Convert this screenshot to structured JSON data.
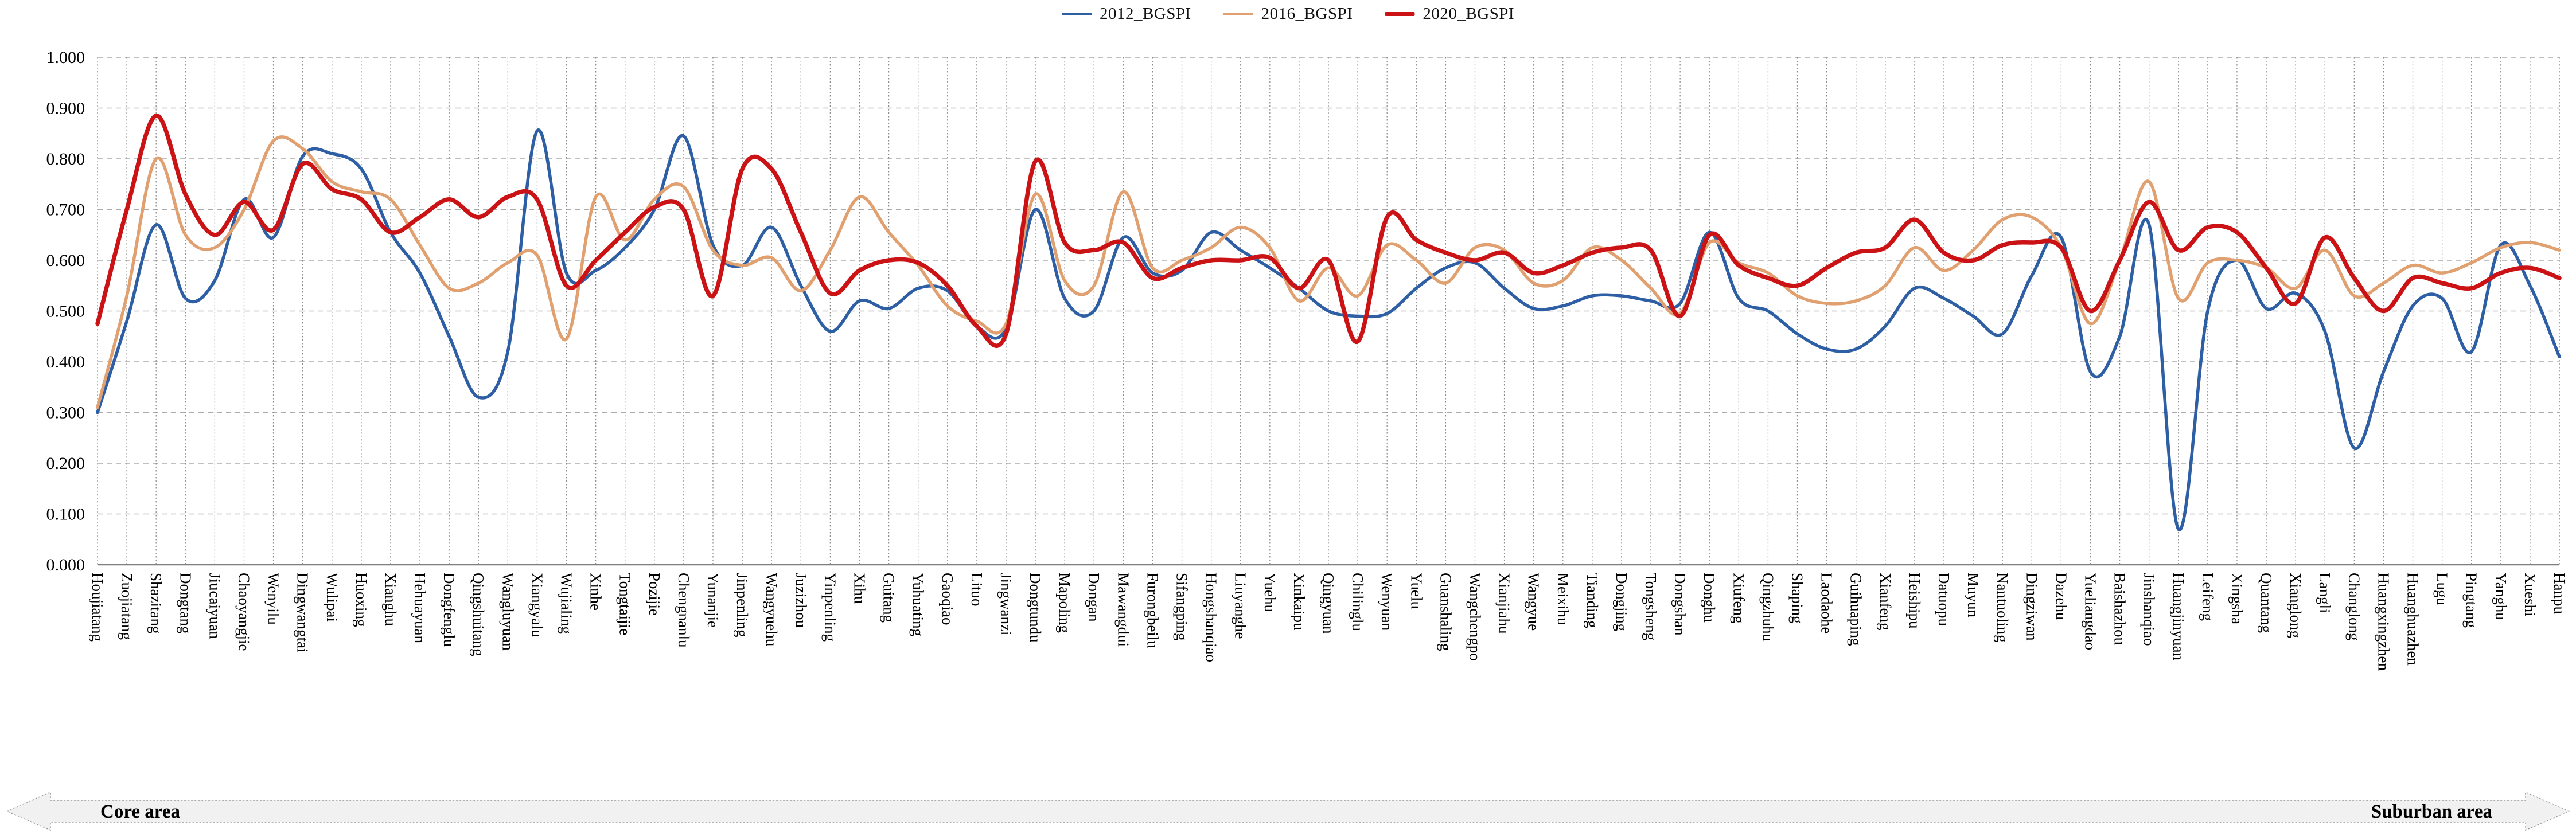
{
  "legend_title": "",
  "footer": {
    "left_label": "Core area",
    "right_label": "Suburban area"
  },
  "chart_data": {
    "type": "line",
    "title": "",
    "xlabel": "",
    "ylabel": "",
    "ylim": [
      0.0,
      1.0
    ],
    "ytick_step": 0.1,
    "ytick_decimals": 3,
    "grid": "both",
    "legend_position": "top-center",
    "line_style": "smooth",
    "categories": [
      "Houjiatang",
      "Zuojiatang",
      "Shazitang",
      "Dongtang",
      "Jiucaiyuan",
      "Chaoyangjie",
      "Wenyilu",
      "Dingwangtai",
      "Wulipai",
      "Huoxing",
      "Xianghu",
      "Hehuayuan",
      "Dongfenglu",
      "Qingshuitang",
      "Wangluyuan",
      "Xiangyalu",
      "Wujialing",
      "Xinhe",
      "Tongtaijie",
      "Pozijie",
      "Chengnanlu",
      "Yunanjie",
      "Jinpenling",
      "Wangyuehu",
      "Juzizhou",
      "Yinpenling",
      "Xihu",
      "Guitang",
      "Yuhuating",
      "Gaoqiao",
      "Lituo",
      "Jingwanzi",
      "Dongtundu",
      "Mapoling",
      "Dongan",
      "Mawangdui",
      "Furongbeilu",
      "Sifangping",
      "Hongshanqiao",
      "Liuyanghe",
      "Yuehu",
      "Xinkaipu",
      "Qingyuan",
      "Chilinglu",
      "Wenyuan",
      "Yuelu",
      "Guanshaling",
      "Wangchengpo",
      "Xianjiahu",
      "Wangyue",
      "Meixihu",
      "Tianding",
      "Dongjing",
      "Tongsheng",
      "Dongshan",
      "Donghu",
      "Xiufeng",
      "Qingzhuhu",
      "Shaping",
      "Laodaohe",
      "Guihuaping",
      "Xianfeng",
      "Heishipu",
      "Datuopu",
      "Muyun",
      "Nantuoling",
      "Dingziwan",
      "Dazehu",
      "Yueliangdao",
      "Baishazhou",
      "Jinshanqiao",
      "Huangjinyuan",
      "Leifeng",
      "Xingsha",
      "Quantang",
      "Xianglong",
      "Langli",
      "Changlong",
      "Huangxingzhen",
      "Huanghuazhen",
      "Lugu",
      "Pingtang",
      "Yanghu",
      "Xueshi",
      "Hanpu"
    ],
    "series": [
      {
        "name": "2012_BGSPI",
        "color": "#2e5fa5",
        "stroke_width": 5.5,
        "values": [
          0.3,
          0.48,
          0.67,
          0.525,
          0.56,
          0.72,
          0.645,
          0.805,
          0.81,
          0.78,
          0.655,
          0.575,
          0.45,
          0.33,
          0.42,
          0.855,
          0.575,
          0.58,
          0.625,
          0.7,
          0.845,
          0.63,
          0.59,
          0.665,
          0.55,
          0.46,
          0.52,
          0.505,
          0.545,
          0.54,
          0.47,
          0.465,
          0.7,
          0.525,
          0.5,
          0.645,
          0.575,
          0.58,
          0.655,
          0.62,
          0.585,
          0.545,
          0.5,
          0.49,
          0.495,
          0.545,
          0.585,
          0.595,
          0.545,
          0.505,
          0.51,
          0.53,
          0.53,
          0.52,
          0.515,
          0.655,
          0.525,
          0.5,
          0.455,
          0.425,
          0.425,
          0.47,
          0.545,
          0.525,
          0.49,
          0.455,
          0.57,
          0.645,
          0.38,
          0.45,
          0.67,
          0.07,
          0.5,
          0.6,
          0.505,
          0.535,
          0.46,
          0.23,
          0.38,
          0.51,
          0.525,
          0.42,
          0.63,
          0.55,
          0.41
        ]
      },
      {
        "name": "2016_BGSPI",
        "color": "#e0a070",
        "stroke_width": 5.5,
        "values": [
          0.31,
          0.53,
          0.8,
          0.65,
          0.625,
          0.7,
          0.835,
          0.82,
          0.755,
          0.735,
          0.72,
          0.63,
          0.545,
          0.555,
          0.595,
          0.61,
          0.445,
          0.725,
          0.64,
          0.72,
          0.745,
          0.62,
          0.59,
          0.605,
          0.54,
          0.62,
          0.725,
          0.655,
          0.59,
          0.51,
          0.48,
          0.475,
          0.73,
          0.56,
          0.55,
          0.735,
          0.585,
          0.6,
          0.625,
          0.665,
          0.625,
          0.52,
          0.585,
          0.53,
          0.63,
          0.6,
          0.555,
          0.625,
          0.62,
          0.555,
          0.56,
          0.625,
          0.6,
          0.545,
          0.495,
          0.635,
          0.595,
          0.575,
          0.53,
          0.515,
          0.52,
          0.55,
          0.625,
          0.58,
          0.62,
          0.68,
          0.685,
          0.625,
          0.475,
          0.6,
          0.755,
          0.525,
          0.595,
          0.6,
          0.585,
          0.545,
          0.62,
          0.53,
          0.555,
          0.59,
          0.575,
          0.595,
          0.625,
          0.635,
          0.62
        ]
      },
      {
        "name": "2020_BGSPI",
        "color": "#cb1316",
        "stroke_width": 7.5,
        "values": [
          0.475,
          0.7,
          0.885,
          0.73,
          0.65,
          0.715,
          0.66,
          0.79,
          0.74,
          0.72,
          0.655,
          0.685,
          0.72,
          0.685,
          0.725,
          0.72,
          0.55,
          0.6,
          0.655,
          0.705,
          0.7,
          0.53,
          0.78,
          0.78,
          0.655,
          0.535,
          0.58,
          0.6,
          0.595,
          0.55,
          0.47,
          0.455,
          0.795,
          0.635,
          0.62,
          0.635,
          0.565,
          0.585,
          0.6,
          0.6,
          0.605,
          0.545,
          0.6,
          0.44,
          0.685,
          0.64,
          0.615,
          0.6,
          0.615,
          0.575,
          0.59,
          0.615,
          0.625,
          0.62,
          0.49,
          0.65,
          0.59,
          0.565,
          0.55,
          0.585,
          0.615,
          0.625,
          0.68,
          0.615,
          0.6,
          0.63,
          0.635,
          0.625,
          0.5,
          0.6,
          0.715,
          0.62,
          0.665,
          0.655,
          0.585,
          0.515,
          0.645,
          0.565,
          0.5,
          0.565,
          0.555,
          0.545,
          0.575,
          0.585,
          0.565
        ]
      }
    ]
  }
}
